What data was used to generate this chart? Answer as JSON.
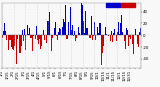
{
  "background_color": "#f8f8f8",
  "bar_color_above": "#0000cc",
  "bar_color_below": "#cc0000",
  "ylim": [
    -55,
    55
  ],
  "n_bars": 365,
  "seed": 42,
  "grid_color": "#bbbbbb",
  "tick_fontsize": 2.8,
  "ylabel_vals": [
    40,
    20,
    0,
    -20,
    -40
  ],
  "num_gridlines": 13,
  "legend_blue": "#0000cc",
  "legend_red": "#cc0000",
  "figwidth": 1.6,
  "figheight": 0.87,
  "dpi": 100
}
